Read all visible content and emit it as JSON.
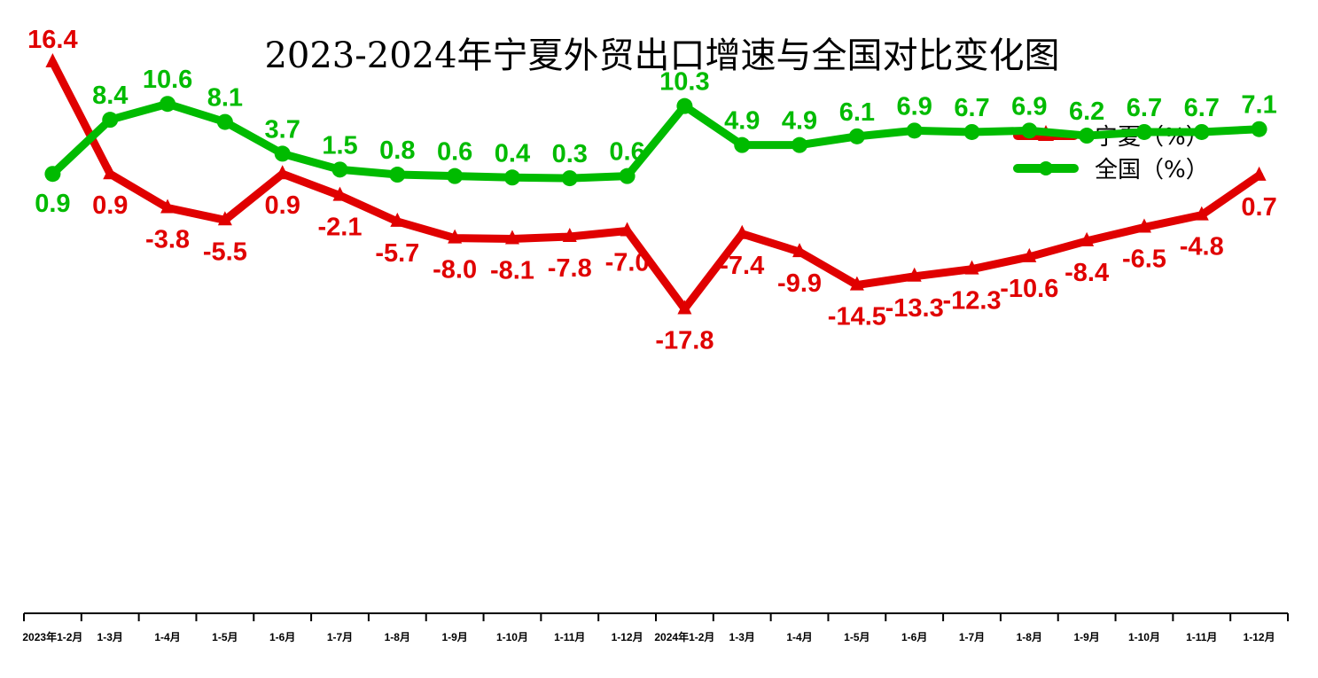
{
  "chart_data": {
    "type": "line",
    "title": "2023-2024年宁夏外贸出口增速与全国对比变化图",
    "categories": [
      "2023年1-2月",
      "1-3月",
      "1-4月",
      "1-5月",
      "1-6月",
      "1-7月",
      "1-8月",
      "1-9月",
      "1-10月",
      "1-11月",
      "1-12月",
      "2024年1-2月",
      "1-3月",
      "1-4月",
      "1-5月",
      "1-6月",
      "1-7月",
      "1-8月",
      "1-9月",
      "1-10月",
      "1-11月",
      "1-12月"
    ],
    "series": [
      {
        "name": "宁夏（%）",
        "color": "#e00000",
        "marker": "triangle",
        "values": [
          16.4,
          0.9,
          -3.8,
          -5.5,
          0.9,
          -2.1,
          -5.7,
          -8.0,
          -8.1,
          -7.8,
          -7.0,
          -17.8,
          -7.4,
          -9.9,
          -14.5,
          -13.3,
          -12.3,
          -10.6,
          -8.4,
          -6.5,
          -4.8,
          0.7
        ],
        "labels": [
          "16.4",
          "0.9",
          "-3.8",
          "-5.5",
          "0.9",
          "-2.1",
          "-5.7",
          "-8.0",
          "-8.1",
          "-7.8",
          "-7.0",
          "-17.8",
          "-7.4",
          "-9.9",
          "-14.5",
          "-13.3",
          "-12.3",
          "-10.6",
          "-8.4",
          "-6.5",
          "-4.8",
          "0.7"
        ]
      },
      {
        "name": "全国（%）",
        "color": "#00bb00",
        "marker": "circle",
        "values": [
          0.9,
          8.4,
          10.6,
          8.1,
          3.7,
          1.5,
          0.8,
          0.6,
          0.4,
          0.3,
          0.6,
          10.3,
          4.9,
          4.9,
          6.1,
          6.9,
          6.7,
          6.9,
          6.2,
          6.7,
          6.7,
          7.1
        ],
        "labels": [
          "0.9",
          "8.4",
          "10.6",
          "8.1",
          "3.7",
          "1.5",
          "0.8",
          "0.6",
          "0.4",
          "0.3",
          "0.6",
          "10.3",
          "4.9",
          "4.9",
          "6.1",
          "6.9",
          "6.7",
          "6.9",
          "6.2",
          "6.7",
          "6.7",
          "7.1"
        ]
      }
    ],
    "xlabel": "",
    "ylabel": "",
    "ylim": [
      -60,
      25
    ],
    "grid": false,
    "legend_position": "top-right"
  }
}
